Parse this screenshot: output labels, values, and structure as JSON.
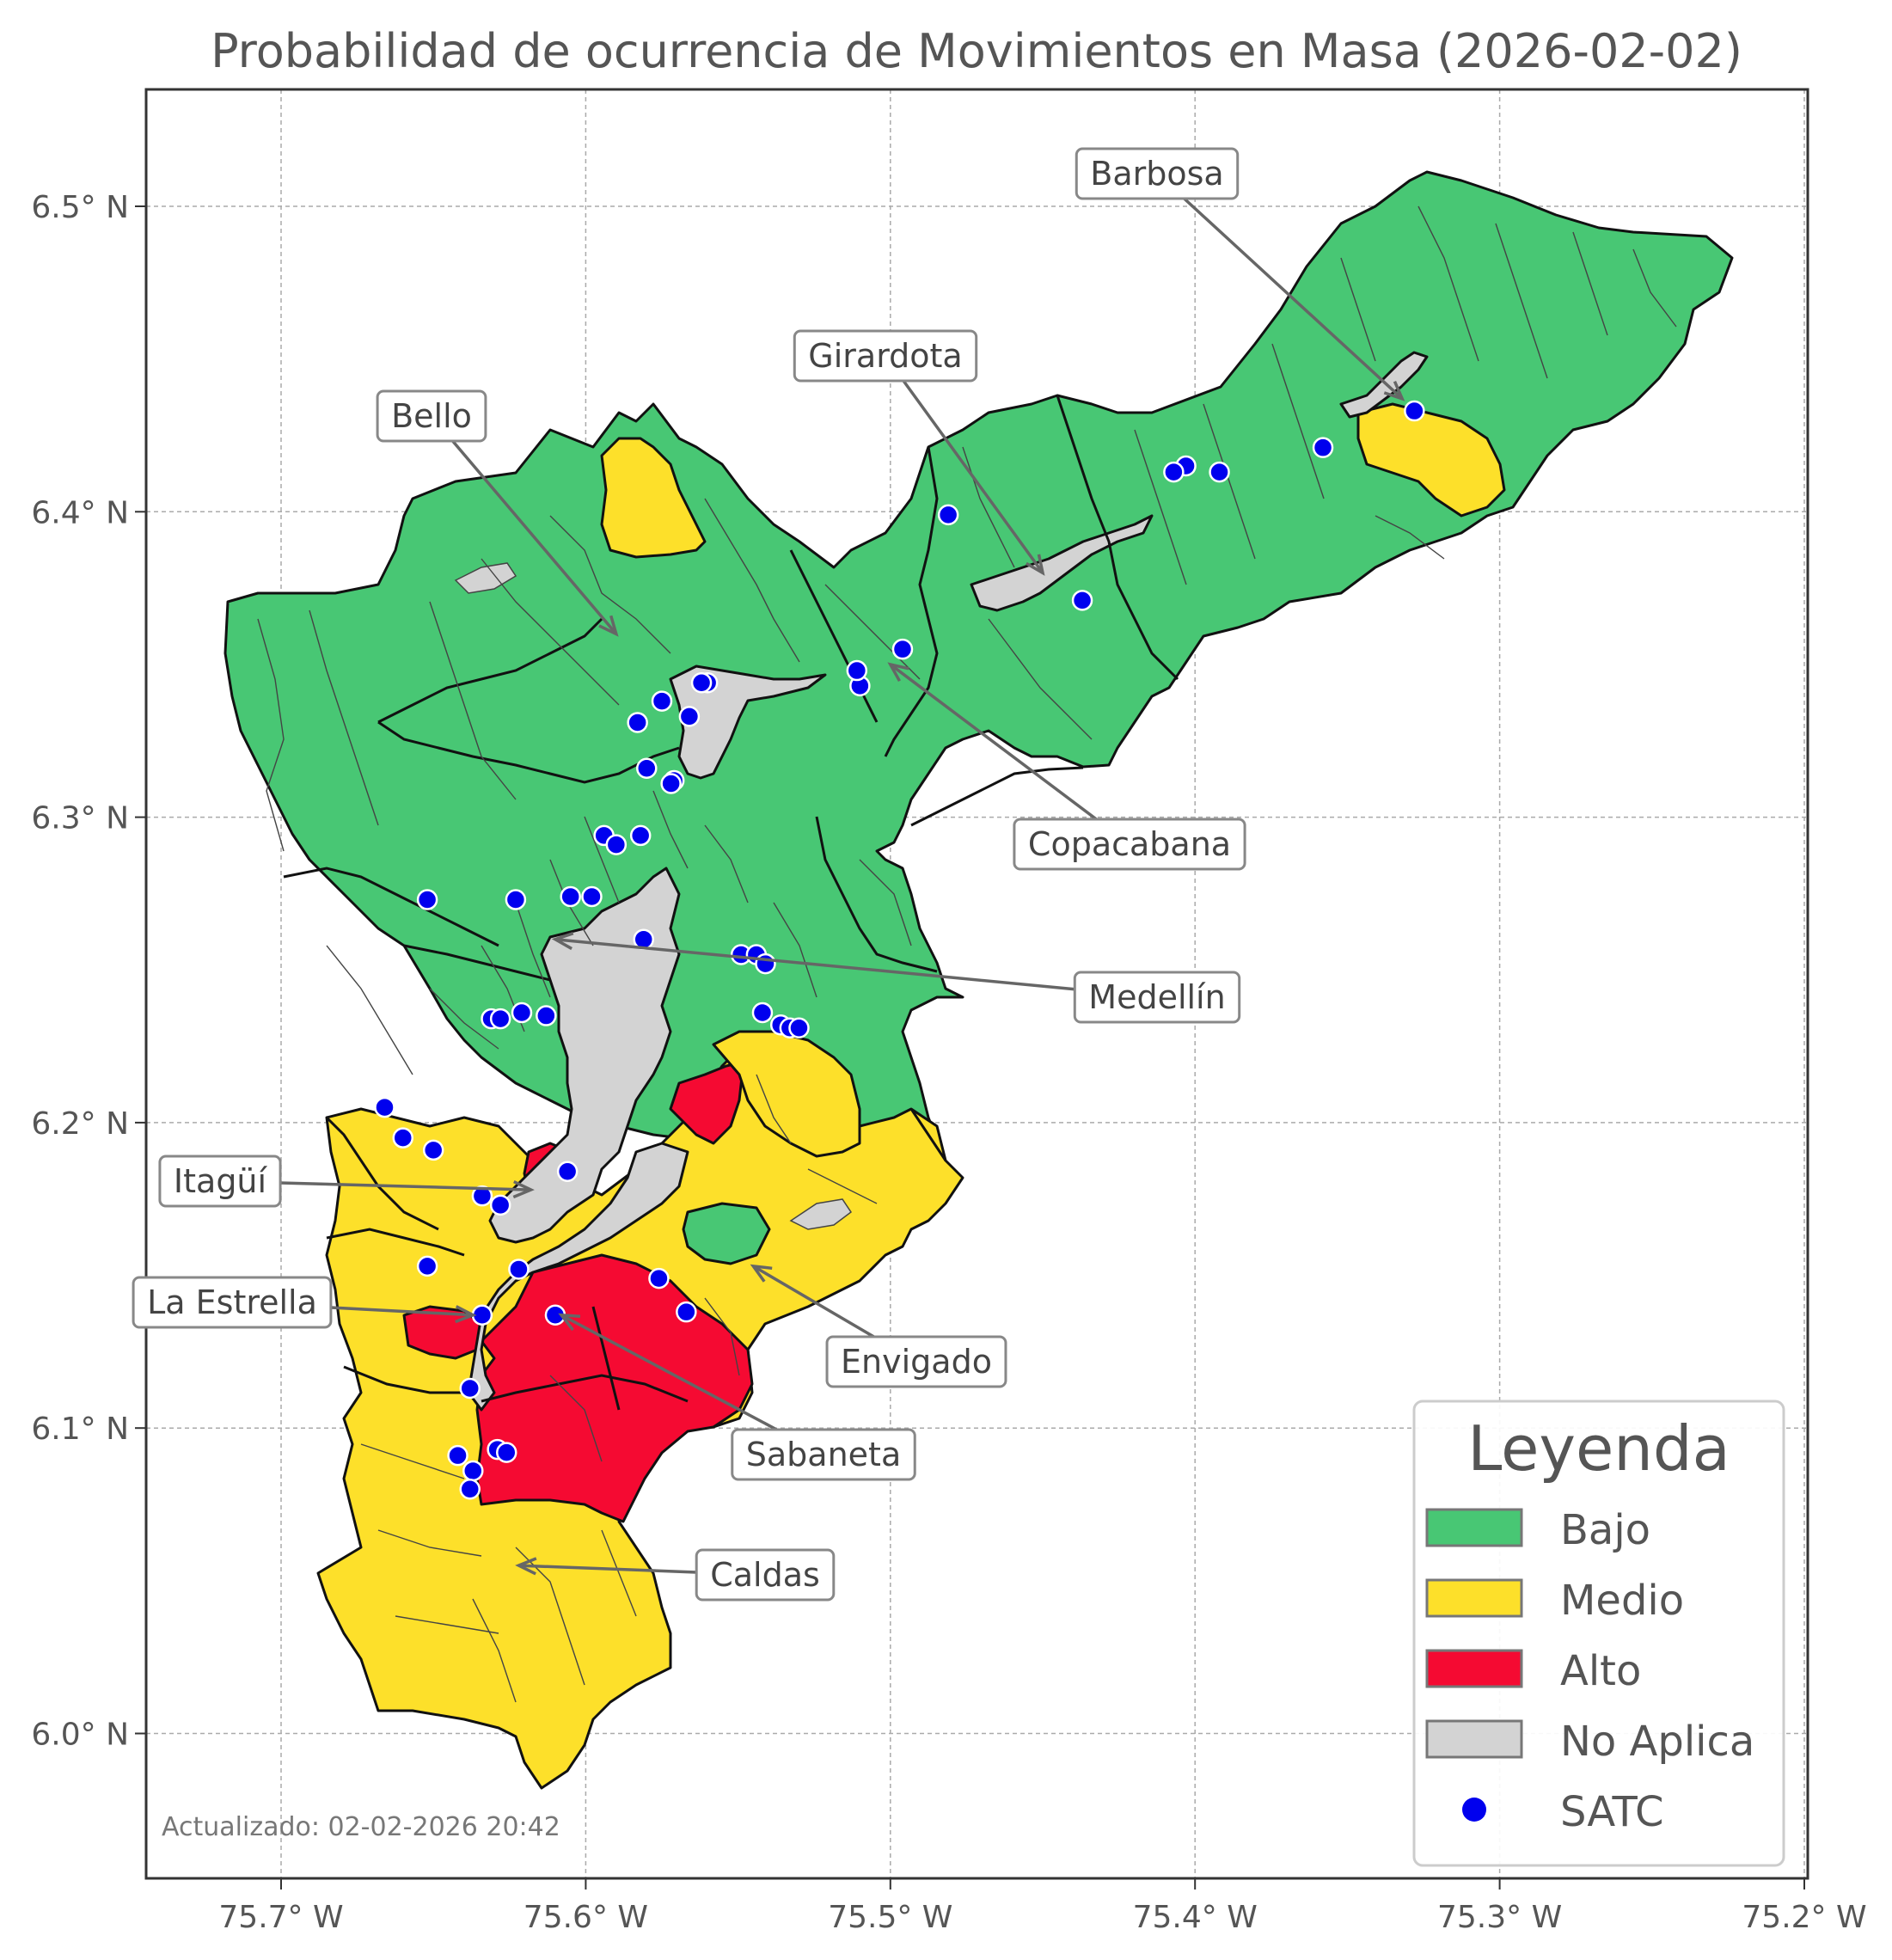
{
  "title": "Probabilidad de ocurrencia de Movimientos en Masa (2026-02-02)",
  "footer": "Actualizado: 02-02-2026 20:42",
  "x_ticks": [
    "75.7° W",
    "75.6° W",
    "75.5° W",
    "75.4° W",
    "75.3° W",
    "75.2° W"
  ],
  "y_ticks": [
    "6.5° N",
    "6.4° N",
    "6.3° N",
    "6.2° N",
    "6.1° N",
    "6.0° N"
  ],
  "colors": {
    "bajo": "#48c774",
    "medio": "#fde02a",
    "alto": "#f50a32",
    "no_aplica": "#d3d3d3",
    "satc": "#0000ee"
  },
  "legend": {
    "title": "Leyenda",
    "items": [
      {
        "label": "Bajo",
        "key": "bajo",
        "marker": "patch"
      },
      {
        "label": "Medio",
        "key": "medio",
        "marker": "patch"
      },
      {
        "label": "Alto",
        "key": "alto",
        "marker": "patch"
      },
      {
        "label": "No Aplica",
        "key": "no_aplica",
        "marker": "patch"
      },
      {
        "label": "SATC",
        "key": "satc",
        "marker": "dot"
      }
    ]
  },
  "municipalities": [
    {
      "name": "Barbosa",
      "lon": -75.332,
      "lat": 6.437,
      "level": "Bajo"
    },
    {
      "name": "Girardota",
      "lon": -75.45,
      "lat": 6.38,
      "level": "Bajo"
    },
    {
      "name": "Bello",
      "lon": -75.59,
      "lat": 6.36,
      "level": "Bajo"
    },
    {
      "name": "Copacabana",
      "lon": -75.5,
      "lat": 6.35,
      "level": "Bajo"
    },
    {
      "name": "Medellín",
      "lon": -75.61,
      "lat": 6.26,
      "level": "Bajo"
    },
    {
      "name": "Itagüí",
      "lon": -75.618,
      "lat": 6.178,
      "level": "Alto"
    },
    {
      "name": "Envigado",
      "lon": -75.545,
      "lat": 6.153,
      "level": "Medio"
    },
    {
      "name": "La Estrella",
      "lon": -75.637,
      "lat": 6.137,
      "level": "Alto"
    },
    {
      "name": "Sabaneta",
      "lon": -75.608,
      "lat": 6.137,
      "level": "Alto"
    },
    {
      "name": "Caldas",
      "lon": -75.622,
      "lat": 6.055,
      "level": "Medio"
    }
  ],
  "satc_stations": [
    [
      -75.328,
      6.433
    ],
    [
      -75.358,
      6.421
    ],
    [
      -75.392,
      6.413
    ],
    [
      -75.403,
      6.415
    ],
    [
      -75.407,
      6.413
    ],
    [
      -75.481,
      6.399
    ],
    [
      -75.437,
      6.371
    ],
    [
      -75.496,
      6.355
    ],
    [
      -75.51,
      6.343
    ],
    [
      -75.511,
      6.348
    ],
    [
      -75.56,
      6.344
    ],
    [
      -75.562,
      6.344
    ],
    [
      -75.566,
      6.333
    ],
    [
      -75.575,
      6.338
    ],
    [
      -75.583,
      6.331
    ],
    [
      -75.58,
      6.316
    ],
    [
      -75.571,
      6.312
    ],
    [
      -75.572,
      6.311
    ],
    [
      -75.594,
      6.294
    ],
    [
      -75.59,
      6.291
    ],
    [
      -75.582,
      6.294
    ],
    [
      -75.652,
      6.273
    ],
    [
      -75.623,
      6.273
    ],
    [
      -75.605,
      6.274
    ],
    [
      -75.598,
      6.274
    ],
    [
      -75.581,
      6.26
    ],
    [
      -75.549,
      6.255
    ],
    [
      -75.544,
      6.255
    ],
    [
      -75.541,
      6.252
    ],
    [
      -75.542,
      6.236
    ],
    [
      -75.536,
      6.232
    ],
    [
      -75.533,
      6.231
    ],
    [
      -75.53,
      6.231
    ],
    [
      -75.621,
      6.236
    ],
    [
      -75.613,
      6.235
    ],
    [
      -75.631,
      6.234
    ],
    [
      -75.628,
      6.234
    ],
    [
      -75.666,
      6.205
    ],
    [
      -75.66,
      6.195
    ],
    [
      -75.65,
      6.191
    ],
    [
      -75.606,
      6.184
    ],
    [
      -75.634,
      6.176
    ],
    [
      -75.628,
      6.173
    ],
    [
      -75.652,
      6.153
    ],
    [
      -75.622,
      6.152
    ],
    [
      -75.576,
      6.149
    ],
    [
      -75.567,
      6.138
    ],
    [
      -75.634,
      6.137
    ],
    [
      -75.61,
      6.137
    ],
    [
      -75.638,
      6.113
    ],
    [
      -75.642,
      6.091
    ],
    [
      -75.629,
      6.093
    ],
    [
      -75.626,
      6.092
    ],
    [
      -75.637,
      6.086
    ],
    [
      -75.638,
      6.08
    ]
  ]
}
